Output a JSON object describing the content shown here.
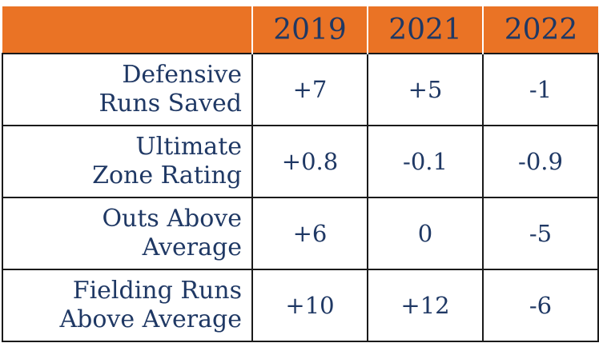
{
  "chart_data": {
    "type": "table",
    "columns": [
      "",
      "2019",
      "2021",
      "2022"
    ],
    "rows": [
      {
        "label_lines": [
          "Defensive",
          "Runs Saved"
        ],
        "values": [
          "+7",
          "+5",
          "-1"
        ]
      },
      {
        "label_lines": [
          "Ultimate",
          "Zone Rating"
        ],
        "values": [
          "+0.8",
          "-0.1",
          "-0.9"
        ]
      },
      {
        "label_lines": [
          "Outs Above",
          "Average"
        ],
        "values": [
          "+6",
          "0",
          "-5"
        ]
      },
      {
        "label_lines": [
          "Fielding Runs",
          "Above Average"
        ],
        "values": [
          "+10",
          "+12",
          "-6"
        ]
      }
    ]
  },
  "colors": {
    "header_background": "#ea7325",
    "text": "#1f3864",
    "border": "#1a1a1a"
  }
}
